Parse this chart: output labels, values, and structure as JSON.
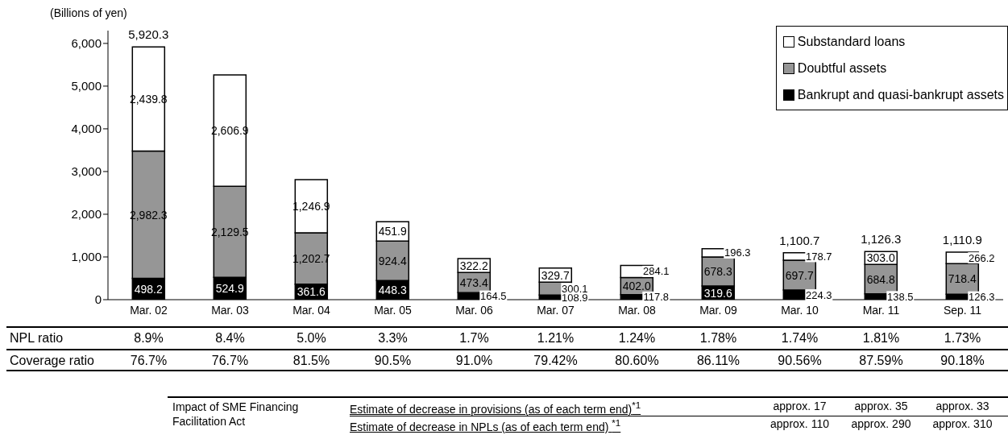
{
  "chart_data": [
    {
      "type": "bar",
      "stacked": true,
      "ylabel": "(Billions of yen)",
      "categories": [
        "Mar. 02",
        "Mar. 03",
        "Mar. 04",
        "Mar. 05",
        "Mar. 06",
        "Mar. 07",
        "Mar. 08",
        "Mar. 09",
        "Mar. 10",
        "Mar. 11",
        "Sep. 11"
      ],
      "series": [
        {
          "name": "Bankrupt and quasi-bankrupt assets",
          "color": "#000000",
          "values": [
            498.2,
            524.9,
            361.6,
            448.3,
            164.5,
            108.9,
            117.8,
            319.6,
            224.3,
            138.5,
            126.3
          ],
          "value_labels": [
            "498.2",
            "524.9",
            "361.6",
            "448.3",
            "164.5",
            "108.9",
            "117.8",
            "319.6",
            "224.3",
            "138.5",
            "126.3"
          ]
        },
        {
          "name": "Doubtful assets",
          "color": "#969696",
          "values": [
            2982.3,
            2129.5,
            1202.7,
            924.4,
            473.4,
            300.1,
            402.0,
            678.3,
            697.7,
            684.8,
            718.4
          ],
          "value_labels": [
            "2,982.3",
            "2,129.5",
            "1,202.7",
            "924.4",
            "473.4",
            "300.1",
            "402.0",
            "678.3",
            "697.7",
            "684.8",
            "718.4"
          ]
        },
        {
          "name": "Substandard loans",
          "color": "#ffffff",
          "values": [
            2439.8,
            2606.9,
            1246.9,
            451.9,
            322.2,
            329.7,
            284.1,
            196.3,
            178.7,
            303.0,
            266.2
          ],
          "value_labels": [
            "2,439.8",
            "2,606.9",
            "1,246.9",
            "451.9",
            "322.2",
            "329.7",
            "284.1",
            "196.3",
            "178.7",
            "303.0",
            "266.2"
          ]
        }
      ],
      "totals": [
        "5,920.3",
        null,
        null,
        null,
        null,
        null,
        null,
        null,
        "1,100.7",
        "1,126.3",
        "1,110.9"
      ],
      "ylim": [
        0,
        6300
      ],
      "yticks": [
        0,
        {
          "value": 1000,
          "label": "1,000"
        },
        {
          "value": 2000,
          "label": "2,000"
        },
        {
          "value": 3000,
          "label": "3,000"
        },
        {
          "value": 4000,
          "label": "4,000"
        },
        {
          "value": 5000,
          "label": "5,000"
        },
        {
          "value": 6000,
          "label": "6,000"
        }
      ],
      "legend": "top right"
    },
    {
      "type": "other",
      "categories": [
        null,
        null,
        null,
        null,
        null,
        null,
        null,
        null,
        null,
        null,
        null
      ],
      "y_categories": [
        "NPL ratio",
        "Coverage ratio"
      ],
      "annotations": [
        "8.9%",
        "8.4%",
        "5.0%",
        "3.3%",
        "1.7%",
        "1.21%",
        "1.24%",
        "1.78%",
        "1.74%",
        "1.81%",
        "1.73%",
        "76.7%",
        "76.7%",
        "81.5%",
        "90.5%",
        "91.0%",
        "79.42%",
        "80.60%",
        "86.11%",
        "90.56%",
        "87.59%",
        "90.18%"
      ]
    },
    {
      "type": "other",
      "title": "Impact of SME Financing Facilitation Act",
      "categories": [
        null,
        null,
        null
      ],
      "y_categories": [
        "Estimate of decrease in provisions (as of each term end)$^{*1}$",
        "Estimate of decrease in NPLs (as of each term end) $^{*1}$"
      ],
      "annotations": [
        "approx. 17",
        "approx. 35",
        "approx. 33",
        "approx. 110",
        "approx. 290",
        "approx. 310"
      ]
    }
  ]
}
